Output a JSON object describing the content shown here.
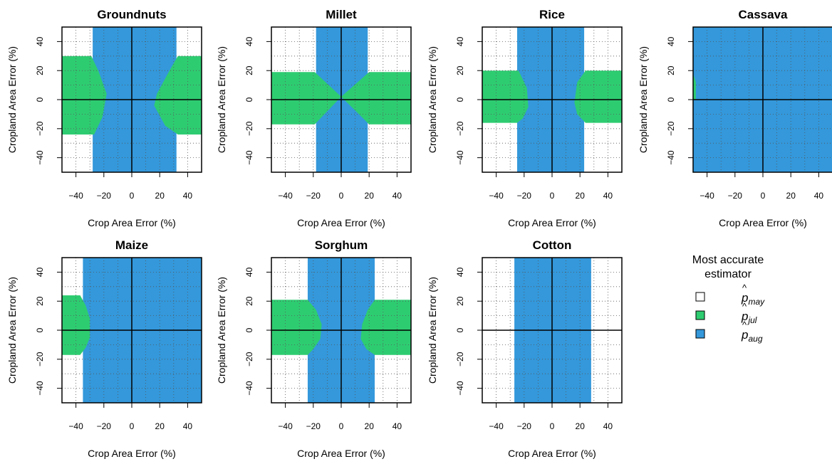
{
  "chart_data": {
    "type": "heatmap",
    "xlabel": "Crop Area Error (%)",
    "ylabel": "Cropland Area Error (%)",
    "xlim": [
      -50,
      50
    ],
    "ylim": [
      -50,
      50
    ],
    "ticks": [
      -40,
      -20,
      0,
      20,
      40
    ],
    "tick_labels": [
      "−40",
      "−20",
      "0",
      "20",
      "40"
    ],
    "grid": true,
    "categories": [
      "may",
      "jul",
      "aug"
    ],
    "colors": {
      "may": "#ffffff",
      "jul": "#2ecc71",
      "aug": "#3498db"
    },
    "panels": [
      {
        "title": "Groundnuts",
        "background": "aug",
        "region": "jul",
        "blue_band": [
          -28,
          32
        ],
        "green_shapes": [
          {
            "x": [
              -50,
              -29,
              -24,
              -18,
              -21,
              -27,
              -29,
              -50
            ],
            "y": [
              30,
              30,
              20,
              4,
              -12,
              -24,
              -24,
              -24
            ]
          },
          {
            "x": [
              50,
              33,
              27,
              18,
              16,
              24,
              33,
              50
            ],
            "y": [
              30,
              30,
              20,
              4,
              -4,
              -18,
              -24,
              -24
            ]
          }
        ]
      },
      {
        "title": "Millet",
        "background": "aug",
        "region": "jul",
        "blue_band": [
          -18,
          19
        ],
        "green_shapes": [
          {
            "x": [
              -50,
              -19,
              0,
              -19,
              -50
            ],
            "y": [
              19,
              19,
              2,
              -17,
              -17
            ]
          },
          {
            "x": [
              50,
              20,
              0,
              20,
              50
            ],
            "y": [
              19,
              19,
              2,
              -17,
              -17
            ]
          }
        ]
      },
      {
        "title": "Rice",
        "background": "aug",
        "region": "jul",
        "blue_band": [
          -25,
          23
        ],
        "green_shapes": [
          {
            "x": [
              -50,
              -24,
              -18,
              -17,
              -21,
              -25,
              -50
            ],
            "y": [
              20,
              20,
              8,
              -5,
              -13,
              -16,
              -16
            ]
          },
          {
            "x": [
              50,
              24,
              18,
              16,
              18,
              24,
              50
            ],
            "y": [
              20,
              20,
              12,
              -2,
              -10,
              -16,
              -16
            ]
          }
        ]
      },
      {
        "title": "Cassava",
        "background": "aug",
        "region": "jul",
        "blue_band": [
          -50,
          50
        ],
        "green_shapes": [
          {
            "x": [
              -50,
              -48,
              -48,
              -50
            ],
            "y": [
              18,
              12,
              0,
              0
            ]
          }
        ]
      },
      {
        "title": "Maize",
        "background": "aug",
        "region": "jul",
        "blue_band": [
          -35,
          50
        ],
        "green_shapes": [
          {
            "x": [
              -50,
              -37,
              -33,
              -30,
              -30,
              -33,
              -37,
              -50
            ],
            "y": [
              24,
              24,
              17,
              8,
              -5,
              -12,
              -17,
              -17
            ]
          }
        ]
      },
      {
        "title": "Sorghum",
        "background": "aug",
        "region": "jul",
        "blue_band": [
          -24,
          24
        ],
        "green_shapes": [
          {
            "x": [
              -50,
              -24,
              -18,
              -14,
              -15,
              -20,
              -24,
              -50
            ],
            "y": [
              21,
              21,
              14,
              4,
              -6,
              -13,
              -17,
              -17
            ]
          },
          {
            "x": [
              50,
              24,
              19,
              15,
              14,
              18,
              24,
              50
            ],
            "y": [
              21,
              21,
              14,
              4,
              -6,
              -13,
              -17,
              -17
            ]
          }
        ]
      },
      {
        "title": "Cotton",
        "background": "aug",
        "region": "jul",
        "blue_band": [
          -27,
          28
        ],
        "green_shapes": []
      }
    ]
  },
  "legend": {
    "title_line1": "Most accurate",
    "title_line2": "estimator",
    "items": [
      {
        "key": "may",
        "symbol": "p",
        "subscript": "may"
      },
      {
        "key": "jul",
        "symbol": "p",
        "subscript": "jul"
      },
      {
        "key": "aug",
        "symbol": "p",
        "subscript": "aug"
      }
    ]
  }
}
